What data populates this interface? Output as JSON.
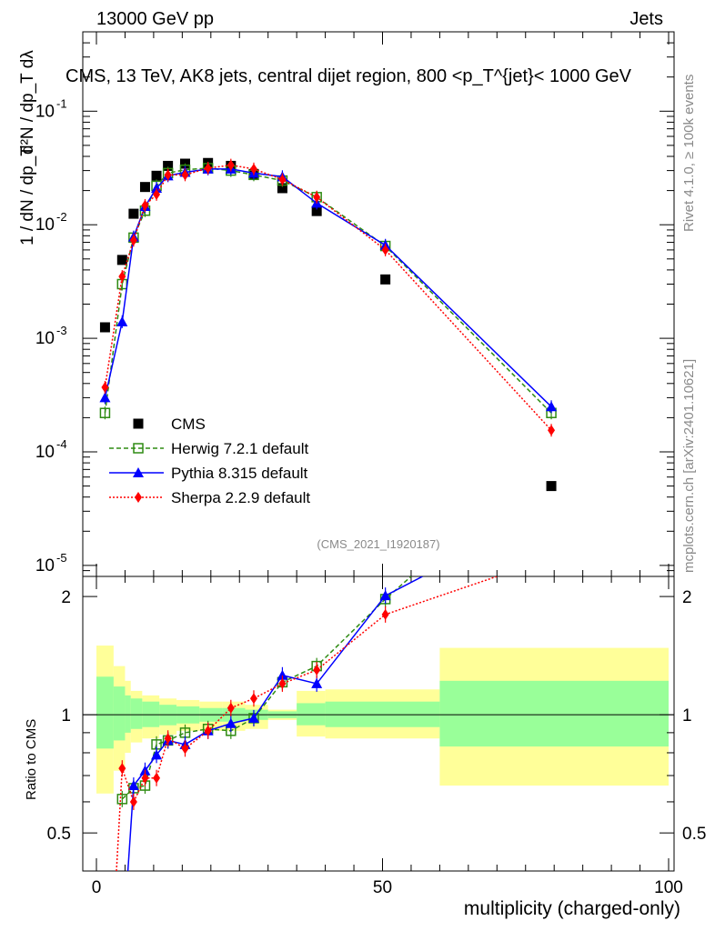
{
  "header": {
    "energy": "13000 GeV pp",
    "category": "Jets"
  },
  "side": {
    "rivet": "Rivet 4.1.0, ≥ 100k events",
    "source": "mcplots.cern.ch [arXiv:2401.10621]"
  },
  "labels": {
    "analysis": "(CMS_2021_I1920187)",
    "y_main_left": "1 / dN / dp_T",
    "y_main_right": "d²N / dp_T dλ",
    "y_ratio": "Ratio to CMS",
    "x_axis": "multiplicity (charged-only)"
  },
  "chart_data": [
    {
      "type": "scatter",
      "title": "CMS, 13 TeV, AK8 jets, central dijet region, 800 <p_T^{jet}< 1000 GeV",
      "xlabel": "multiplicity (charged-only)",
      "ylabel": "(1/dN/dp_T) d²N/dp_T dλ",
      "yscale": "log",
      "xlim": [
        0,
        100
      ],
      "ylim": [
        8e-06,
        0.5
      ],
      "yticks": [
        {
          "v": 1e-05,
          "base": "10",
          "exp": "-5"
        },
        {
          "v": 0.0001,
          "base": "10",
          "exp": "-4"
        },
        {
          "v": 0.001,
          "base": "10",
          "exp": "-3"
        },
        {
          "v": 0.01,
          "base": "10",
          "exp": "-2"
        },
        {
          "v": 0.1,
          "base": "10",
          "exp": "-1"
        }
      ],
      "legend": [
        {
          "name": "CMS",
          "color": "#000000",
          "marker": "square"
        },
        {
          "name": "Herwig 7.2.1 default",
          "color": "#2e8b12",
          "marker": "open-square"
        },
        {
          "name": "Pythia 8.315 default",
          "color": "#0000ff",
          "marker": "triangle"
        },
        {
          "name": "Sherpa 2.2.9 default",
          "color": "#ff0000",
          "marker": "diamond"
        }
      ],
      "series": [
        {
          "name": "CMS",
          "x": [
            1.5,
            4.5,
            6.5,
            8.5,
            10.5,
            12.5,
            15.5,
            19.5,
            23.5,
            27.5,
            32.5,
            38.5,
            50.5,
            79.5
          ],
          "y": [
            0.00125,
            0.0049,
            0.0125,
            0.0215,
            0.027,
            0.033,
            0.0345,
            0.035,
            0.033,
            0.028,
            0.021,
            0.0132,
            0.0033,
            5e-05
          ]
        },
        {
          "name": "Herwig 7.2.1 default",
          "x": [
            1.5,
            4.5,
            6.5,
            8.5,
            10.5,
            12.5,
            15.5,
            19.5,
            23.5,
            27.5,
            32.5,
            38.5,
            50.5,
            79.5
          ],
          "y": [
            0.00022,
            0.003,
            0.0077,
            0.0133,
            0.022,
            0.0285,
            0.0305,
            0.0315,
            0.03,
            0.0275,
            0.0245,
            0.0175,
            0.0065,
            0.00022
          ]
        },
        {
          "name": "Pythia 8.315 default",
          "x": [
            1.5,
            4.5,
            6.5,
            8.5,
            10.5,
            12.5,
            15.5,
            19.5,
            23.5,
            27.5,
            32.5,
            38.5,
            50.5,
            79.5
          ],
          "y": [
            0.0003,
            0.0014,
            0.0078,
            0.0145,
            0.021,
            0.027,
            0.029,
            0.031,
            0.031,
            0.0285,
            0.0265,
            0.0155,
            0.0066,
            0.00025
          ]
        },
        {
          "name": "Sherpa 2.2.9 default",
          "x": [
            1.5,
            4.5,
            6.5,
            8.5,
            10.5,
            12.5,
            15.5,
            19.5,
            23.5,
            27.5,
            32.5,
            38.5,
            50.5,
            79.5
          ],
          "y": [
            0.00037,
            0.0035,
            0.0073,
            0.0148,
            0.0185,
            0.0275,
            0.0275,
            0.0315,
            0.0335,
            0.031,
            0.025,
            0.0175,
            0.006,
            0.000155
          ]
        }
      ]
    },
    {
      "type": "scatter",
      "title": "",
      "xlabel": "multiplicity (charged-only)",
      "ylabel": "Ratio to CMS",
      "yscale": "log",
      "xlim": [
        0,
        100
      ],
      "ylim": [
        0.4,
        2.25
      ],
      "xticks": [
        0,
        50,
        100
      ],
      "yticks": [
        0.5,
        1,
        2
      ],
      "bands": {
        "edges": [
          0,
          3,
          5,
          6,
          8,
          11,
          14,
          18,
          22,
          26,
          30,
          35,
          40,
          50,
          60,
          100
        ],
        "inner": [
          [
            0.82,
            1.25
          ],
          [
            0.86,
            1.18
          ],
          [
            0.9,
            1.12
          ],
          [
            0.92,
            1.1
          ],
          [
            0.93,
            1.08
          ],
          [
            0.94,
            1.06
          ],
          [
            0.95,
            1.05
          ],
          [
            0.96,
            1.04
          ],
          [
            0.96,
            1.04
          ],
          [
            0.97,
            1.03
          ],
          [
            0.98,
            1.02
          ],
          [
            0.94,
            1.07
          ],
          [
            0.93,
            1.08
          ],
          [
            0.93,
            1.08
          ],
          [
            0.83,
            1.22
          ]
        ],
        "outer": [
          [
            0.63,
            1.5
          ],
          [
            0.72,
            1.33
          ],
          [
            0.8,
            1.22
          ],
          [
            0.85,
            1.15
          ],
          [
            0.87,
            1.12
          ],
          [
            0.89,
            1.1
          ],
          [
            0.91,
            1.09
          ],
          [
            0.91,
            1.08
          ],
          [
            0.91,
            1.08
          ],
          [
            0.92,
            1.06
          ],
          [
            0.97,
            1.03
          ],
          [
            0.88,
            1.15
          ],
          [
            0.87,
            1.16
          ],
          [
            0.87,
            1.16
          ],
          [
            0.66,
            1.48
          ]
        ]
      },
      "series": [
        {
          "name": "Herwig 7.2.1 default",
          "x": [
            4.5,
            6.5,
            8.5,
            10.5,
            12.5,
            15.5,
            19.5,
            23.5,
            27.5,
            32.5,
            38.5,
            50.5,
            55
          ],
          "y": [
            0.61,
            0.65,
            0.66,
            0.84,
            0.86,
            0.9,
            0.92,
            0.91,
            0.98,
            1.21,
            1.33,
            1.97,
            2.25
          ]
        },
        {
          "name": "Pythia 8.315 default",
          "x": [
            5.5,
            6.5,
            8.5,
            10.5,
            12.5,
            15.5,
            19.5,
            23.5,
            27.5,
            32.5,
            38.5,
            50.5,
            57
          ],
          "y": [
            0.4,
            0.66,
            0.72,
            0.79,
            0.86,
            0.84,
            0.91,
            0.95,
            0.98,
            1.26,
            1.2,
            2.01,
            2.25
          ]
        },
        {
          "name": "Sherpa 2.2.9 default",
          "x": [
            3.5,
            4.5,
            6.5,
            8.5,
            10.5,
            12.5,
            15.5,
            19.5,
            23.5,
            27.5,
            32.5,
            38.5,
            50.5,
            70
          ],
          "y": [
            0.4,
            0.73,
            0.6,
            0.69,
            0.69,
            0.87,
            0.82,
            0.91,
            1.04,
            1.1,
            1.2,
            1.3,
            1.8,
            2.25
          ]
        }
      ]
    }
  ]
}
